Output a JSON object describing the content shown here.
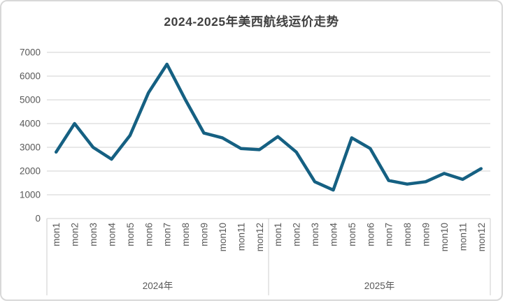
{
  "chart_data": {
    "type": "line",
    "title": "2024-2025年美西航线运价走势",
    "ylabel": "",
    "xlabel": "",
    "ylim": [
      0,
      7000
    ],
    "yticks": [
      0,
      1000,
      2000,
      3000,
      4000,
      5000,
      6000,
      7000
    ],
    "grid": true,
    "legend": "none",
    "year_groups": [
      {
        "label": "2024年",
        "months": [
          "mon1",
          "mon2",
          "mon3",
          "mon4",
          "mon5",
          "mon6",
          "mon7",
          "mon8",
          "mon9",
          "mon10",
          "mon11",
          "mon12"
        ],
        "values": [
          2800,
          4000,
          3000,
          2500,
          3500,
          5300,
          6500,
          5000,
          3600,
          3400,
          2950,
          2900
        ]
      },
      {
        "label": "2025年",
        "months": [
          "mon1",
          "mon2",
          "mon3",
          "mon4",
          "mon5",
          "mon6",
          "mon7",
          "mon8",
          "mon9",
          "mon10",
          "mon11",
          "mon12"
        ],
        "values": [
          3450,
          2800,
          1550,
          1200,
          3400,
          2950,
          1600,
          1450,
          1550,
          1900,
          1650,
          2100
        ]
      }
    ]
  },
  "colors": {
    "line": "#156082",
    "grid": "#d9d9d9",
    "axis_text": "#595959",
    "title_text": "#404040",
    "frame_border": "#d8d8d8"
  }
}
